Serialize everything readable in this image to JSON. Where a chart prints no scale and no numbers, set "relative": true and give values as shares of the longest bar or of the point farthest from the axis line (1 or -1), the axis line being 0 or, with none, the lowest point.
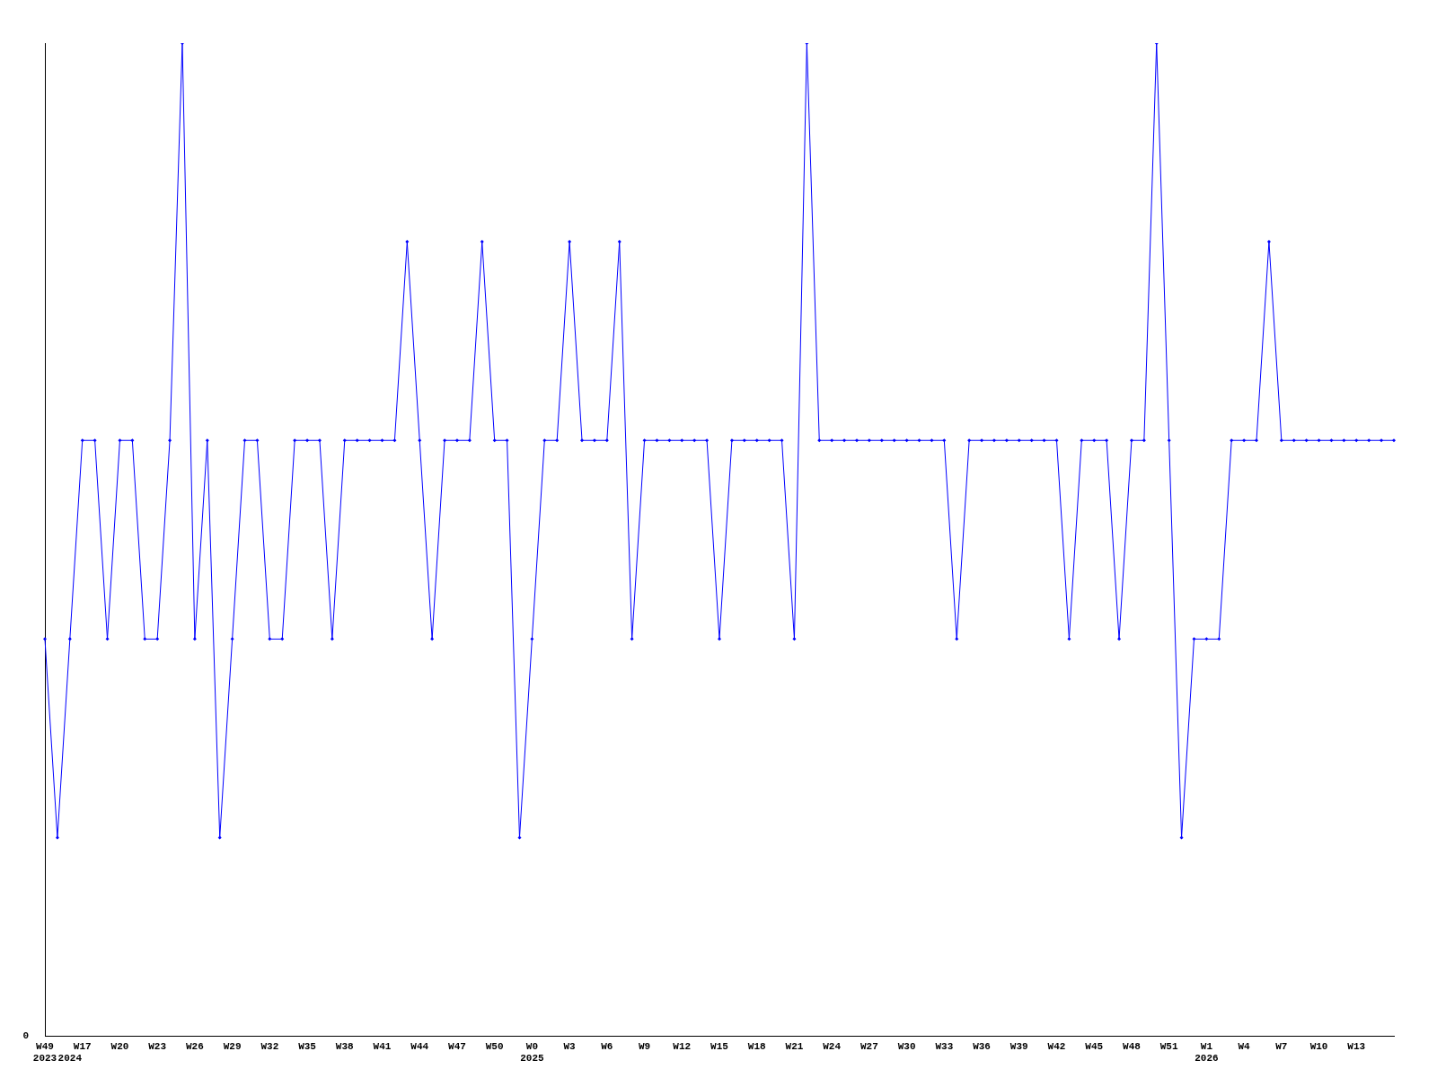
{
  "chart_data": {
    "type": "line",
    "relative": true,
    "marker": "diamond",
    "line_style": "solid",
    "legend": false,
    "grid": false,
    "annotations": [
      "0"
    ],
    "categories": [
      "W49\n2023",
      null,
      "\n2024",
      "W17",
      null,
      null,
      "W20",
      null,
      null,
      "W23",
      null,
      null,
      "W26",
      null,
      null,
      "W29",
      null,
      null,
      "W32",
      null,
      null,
      "W35",
      null,
      null,
      "W38",
      null,
      null,
      "W41",
      null,
      null,
      "W44",
      null,
      null,
      "W47",
      null,
      null,
      "W50",
      null,
      null,
      "W0\n2025",
      null,
      null,
      "W3",
      null,
      null,
      "W6",
      null,
      null,
      "W9",
      null,
      null,
      "W12",
      null,
      null,
      "W15",
      null,
      null,
      "W18",
      null,
      null,
      "W21",
      null,
      null,
      "W24",
      null,
      null,
      "W27",
      null,
      null,
      "W30",
      null,
      null,
      "W33",
      null,
      null,
      "W36",
      null,
      null,
      "W39",
      null,
      null,
      "W42",
      null,
      null,
      "W45",
      null,
      null,
      "W48",
      null,
      null,
      "W51",
      null,
      null,
      "W1\n2026",
      null,
      null,
      "W4",
      null,
      null,
      "W7",
      null,
      null,
      "W10",
      null,
      null,
      "W13",
      null,
      null,
      null
    ],
    "series": [
      {
        "color": "#0000ff",
        "values": [
          0.4,
          0.2,
          0.4,
          0.6,
          0.6,
          0.4,
          0.6,
          0.6,
          0.4,
          0.4,
          0.6,
          1,
          0.4,
          0.6,
          0.2,
          0.4,
          0.6,
          0.6,
          0.4,
          0.4,
          0.6,
          0.6,
          0.6,
          0.4,
          0.6,
          0.6,
          0.6,
          0.6,
          0.6,
          0.8,
          0.6,
          0.4,
          0.6,
          0.6,
          0.6,
          0.8,
          0.6,
          0.6,
          0.2,
          0.4,
          0.6,
          0.6,
          0.8,
          0.6,
          0.6,
          0.6,
          0.8,
          0.4,
          0.6,
          0.6,
          0.6,
          0.6,
          0.6,
          0.6,
          0.4,
          0.6,
          0.6,
          0.6,
          0.6,
          0.6,
          0.4,
          1,
          0.6,
          0.6,
          0.6,
          0.6,
          0.6,
          0.6,
          0.6,
          0.6,
          0.6,
          0.6,
          0.6,
          0.4,
          0.6,
          0.6,
          0.6,
          0.6,
          0.6,
          0.6,
          0.6,
          0.6,
          0.4,
          0.6,
          0.6,
          0.6,
          0.4,
          0.6,
          0.6,
          1,
          0.6,
          0.2,
          0.4,
          0.4,
          0.4,
          0.6,
          0.6,
          0.6,
          0.8,
          0.6,
          0.6,
          0.6,
          0.6,
          0.6,
          0.6,
          0.6,
          0.6,
          0.6,
          0.6
        ]
      }
    ]
  }
}
